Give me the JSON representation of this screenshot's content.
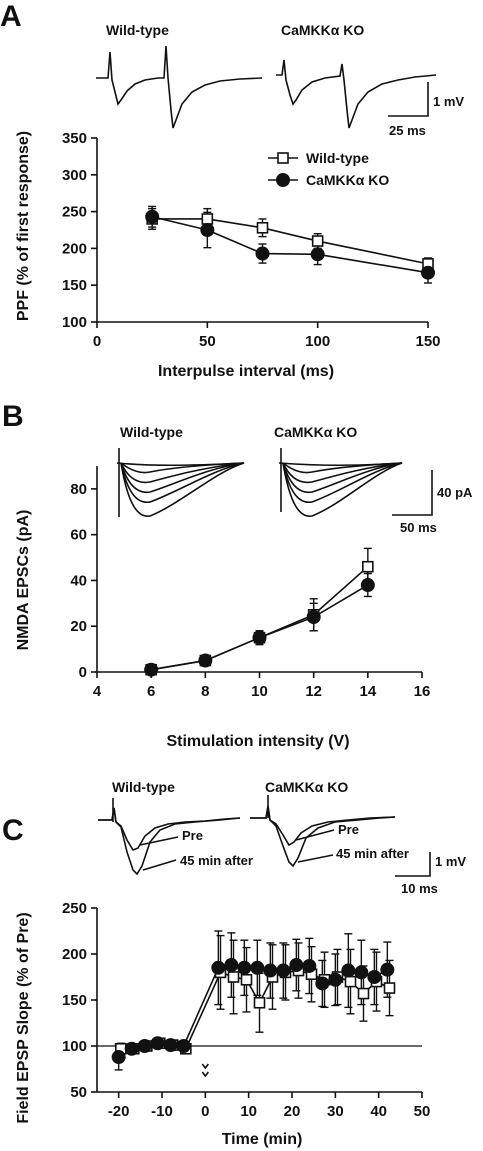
{
  "panels": [
    {
      "label": "A",
      "trace_labels": [
        "Wild-type",
        "CaMKKα KO"
      ],
      "scale_y": "1 mV",
      "scale_x": "25 ms"
    },
    {
      "label": "B",
      "trace_labels": [
        "Wild-type",
        "CaMKKα KO"
      ],
      "scale_y": "40 pA",
      "scale_x": "50 ms"
    },
    {
      "label": "C",
      "trace_labels": [
        "Wild-type",
        "CaMKKα KO"
      ],
      "trace_annotations": [
        "Pre",
        "45 min after"
      ],
      "scale_y": "1 mV",
      "scale_x": "10 ms"
    }
  ],
  "chart_data": [
    {
      "type": "line",
      "panel": "A",
      "xlabel": "Interpulse interval (ms)",
      "ylabel": "PPF (% of first response)",
      "xlim": [
        0,
        150
      ],
      "ylim": [
        100,
        350
      ],
      "xticks": [
        0,
        50,
        100,
        150
      ],
      "yticks": [
        100,
        150,
        200,
        250,
        300,
        350
      ],
      "legend": "top-right",
      "series": [
        {
          "name": "Wild-type",
          "marker": "open-square",
          "x": [
            25,
            50,
            75,
            100,
            150
          ],
          "y": [
            240,
            240,
            228,
            210,
            179
          ],
          "err": [
            14,
            14,
            12,
            10,
            8
          ]
        },
        {
          "name": "CaMKKα KO",
          "marker": "filled-circle",
          "x": [
            25,
            50,
            75,
            100,
            150
          ],
          "y": [
            243,
            225,
            193,
            192,
            167
          ],
          "err": [
            14,
            24,
            13,
            14,
            14
          ]
        }
      ]
    },
    {
      "type": "line",
      "panel": "B",
      "xlabel": "Stimulation intensity (V)",
      "ylabel": "NMDA EPSCs (pA)",
      "xlim": [
        4,
        16
      ],
      "ylim": [
        0,
        90
      ],
      "xticks": [
        4,
        6,
        8,
        10,
        12,
        14,
        16
      ],
      "yticks": [
        0,
        20,
        40,
        60,
        80
      ],
      "series": [
        {
          "name": "Wild-type",
          "marker": "open-square",
          "x": [
            6,
            8,
            10,
            12,
            14
          ],
          "y": [
            1,
            5,
            15,
            25,
            46
          ],
          "err": [
            1,
            1,
            3,
            7,
            8
          ]
        },
        {
          "name": "CaMKKα KO",
          "marker": "filled-circle",
          "x": [
            6,
            8,
            10,
            12,
            14
          ],
          "y": [
            1,
            5,
            15,
            24,
            38
          ],
          "err": [
            1,
            1,
            3,
            6,
            5
          ]
        }
      ]
    },
    {
      "type": "scatter",
      "panel": "C",
      "xlabel": "Time (min)",
      "ylabel": "Field EPSP Slope (% of Pre)",
      "xlim": [
        -25,
        50
      ],
      "ylim": [
        50,
        250
      ],
      "xticks": [
        -20,
        -10,
        0,
        10,
        20,
        30,
        40,
        50
      ],
      "yticks": [
        50,
        100,
        150,
        200,
        250
      ],
      "baseline": 100,
      "arrow_at": 0,
      "series": [
        {
          "name": "Wild-type",
          "marker": "open-square",
          "x": [
            -19.5,
            -16.5,
            -13.5,
            -10.5,
            -7.5,
            -4.5,
            3.5,
            6.5,
            9.5,
            12.5,
            15.5,
            18.5,
            21.5,
            24.5,
            27.5,
            30.5,
            33.5,
            36.5,
            39.5,
            42.5
          ],
          "y": [
            97,
            97,
            100,
            103,
            101,
            97,
            180,
            175,
            172,
            147,
            175,
            180,
            182,
            178,
            172,
            175,
            170,
            157,
            170,
            163
          ],
          "err": [
            6,
            4,
            3,
            4,
            3,
            3,
            40,
            40,
            35,
            32,
            35,
            30,
            30,
            30,
            30,
            30,
            35,
            30,
            32,
            30
          ]
        },
        {
          "name": "CaMKKα KO",
          "marker": "filled-circle",
          "x": [
            -20,
            -17,
            -14,
            -11,
            -8,
            -5,
            3,
            6,
            9,
            12,
            15,
            18,
            21,
            24,
            27,
            30,
            33,
            36,
            39,
            42
          ],
          "y": [
            88,
            97,
            100,
            103,
            101,
            100,
            185,
            188,
            185,
            185,
            182,
            182,
            188,
            187,
            168,
            172,
            182,
            180,
            175,
            183
          ],
          "err": [
            14,
            5,
            4,
            5,
            4,
            3,
            40,
            35,
            30,
            30,
            30,
            30,
            28,
            30,
            25,
            28,
            40,
            35,
            30,
            30
          ]
        }
      ]
    }
  ]
}
